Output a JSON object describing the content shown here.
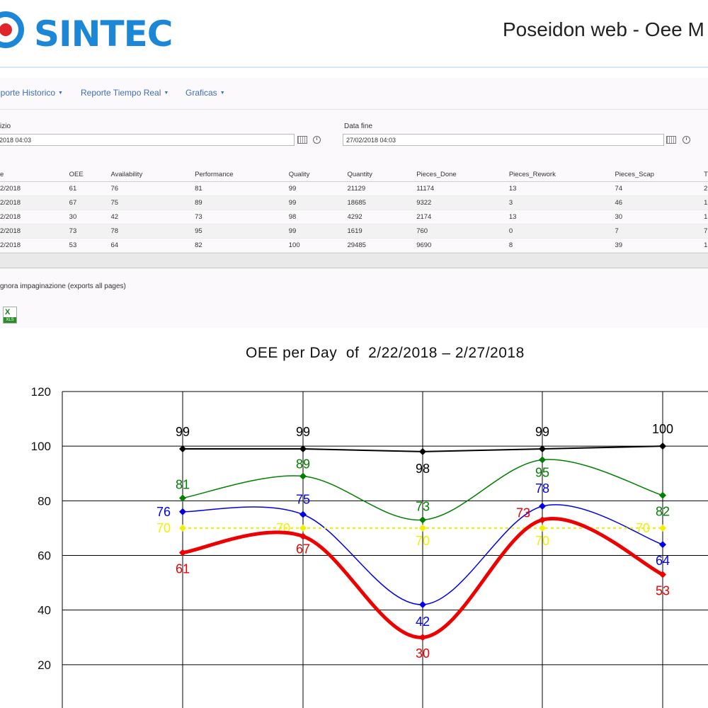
{
  "header": {
    "brand": "SINTEC",
    "title": "Poseidon web - Oee M"
  },
  "menu": [
    {
      "label": "eporte Historico"
    },
    {
      "label": "Reporte Tiempo Real"
    },
    {
      "label": "Graficas"
    }
  ],
  "filters": {
    "start_label": "izio",
    "start_value": "2018 04:03",
    "end_label": "Data fine",
    "end_value": "27/02/2018 04:03"
  },
  "table": {
    "columns": [
      "e",
      "OEE",
      "Availability",
      "Performance",
      "Quality",
      "Quantity",
      "Pieces_Done",
      "Pieces_Rework",
      "Pieces_Scap",
      "T"
    ],
    "rows": [
      [
        "2/2018",
        "61",
        "76",
        "81",
        "99",
        "21129",
        "11174",
        "13",
        "74",
        "2"
      ],
      [
        "2/2018",
        "67",
        "75",
        "89",
        "99",
        "18685",
        "9322",
        "3",
        "46",
        "1"
      ],
      [
        "2/2018",
        "30",
        "42",
        "73",
        "98",
        "4292",
        "2174",
        "13",
        "30",
        "1"
      ],
      [
        "2/2018",
        "73",
        "78",
        "95",
        "99",
        "1619",
        "760",
        "0",
        "7",
        "7"
      ],
      [
        "2/2018",
        "53",
        "64",
        "82",
        "100",
        "29485",
        "9690",
        "8",
        "39",
        "1"
      ]
    ]
  },
  "export": {
    "note": "gnora impaginazione (exports all pages)",
    "xls_label": "XLS"
  },
  "chart_data": {
    "type": "line",
    "title": "OEE per Day  of  2/22/2018 – 2/27/2018",
    "xlabel": "",
    "ylabel": "",
    "ylim": [
      0,
      120
    ],
    "yticks": [
      20,
      40,
      60,
      80,
      100,
      120
    ],
    "grid": true,
    "x": [
      1,
      2,
      3,
      4,
      5
    ],
    "series": [
      {
        "key": "quality",
        "color": "#000000",
        "values": [
          99,
          99,
          98,
          99,
          100
        ],
        "curve": "straight"
      },
      {
        "key": "performance",
        "color": "#008000",
        "values": [
          81,
          89,
          73,
          95,
          82
        ],
        "curve": "smooth"
      },
      {
        "key": "availability",
        "color": "#0000ee",
        "values": [
          76,
          75,
          42,
          78,
          64
        ],
        "curve": "smooth"
      },
      {
        "key": "target",
        "color": "#f0f000",
        "values": [
          70,
          70,
          70,
          70,
          70
        ],
        "curve": "dashed"
      },
      {
        "key": "oee",
        "color": "#ee0000",
        "values": [
          61,
          67,
          30,
          73,
          53
        ],
        "curve": "smooth-thick"
      }
    ]
  }
}
